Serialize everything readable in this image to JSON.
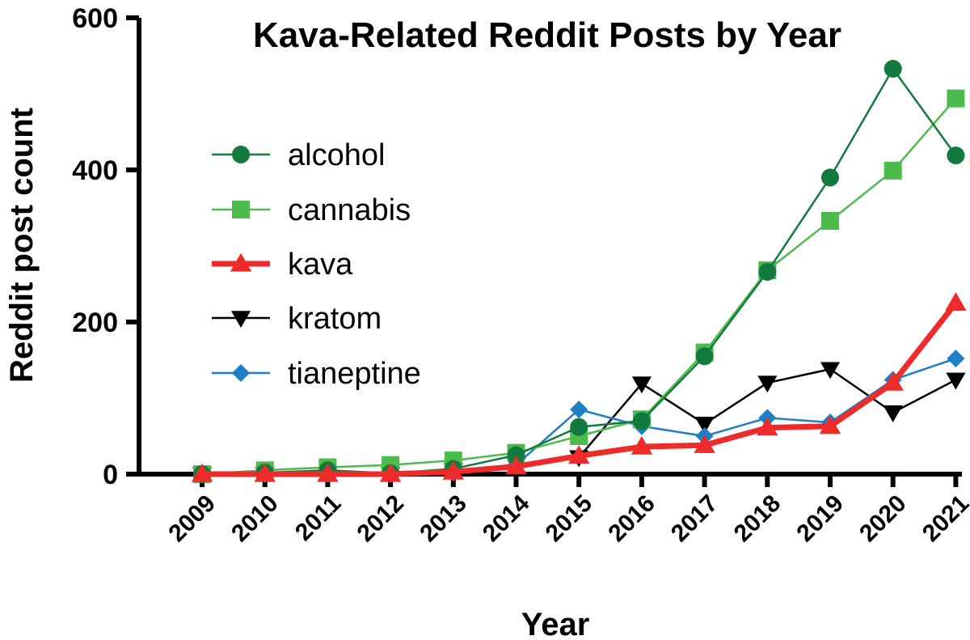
{
  "chart_data": {
    "type": "line",
    "title": "Kava-Related Reddit Posts by Year",
    "xlabel": "Year",
    "ylabel": "Reddit post count",
    "ylim": [
      0,
      600
    ],
    "yticks": [
      0,
      200,
      400,
      600
    ],
    "x": [
      "2009",
      "2010",
      "2011",
      "2012",
      "2013",
      "2014",
      "2015",
      "2016",
      "2017",
      "2018",
      "2019",
      "2020",
      "2021"
    ],
    "legend_position": "center-left",
    "series": [
      {
        "name": "alcohol",
        "color": "#137a3f",
        "marker": "circle",
        "values": [
          0,
          2,
          5,
          1,
          7,
          25,
          62,
          70,
          155,
          266,
          390,
          533,
          419
        ]
      },
      {
        "name": "cannabis",
        "color": "#4cbb4c",
        "marker": "square",
        "values": [
          0,
          5,
          9,
          12,
          18,
          28,
          50,
          72,
          160,
          268,
          333,
          399,
          494
        ]
      },
      {
        "name": "kava",
        "color": "#ee2b2b",
        "marker": "triangle-up",
        "values": [
          0,
          0,
          0,
          0,
          3,
          10,
          24,
          36,
          38,
          61,
          63,
          120,
          225
        ]
      },
      {
        "name": "kratom",
        "color": "#000000",
        "marker": "triangle-down",
        "values": [
          0,
          0,
          0,
          0,
          5,
          12,
          22,
          119,
          66,
          120,
          138,
          81,
          124
        ]
      },
      {
        "name": "tianeptine",
        "color": "#1d7fc8",
        "marker": "diamond",
        "values": [
          0,
          0,
          0,
          0,
          2,
          12,
          85,
          63,
          50,
          74,
          68,
          124,
          152
        ]
      }
    ]
  }
}
